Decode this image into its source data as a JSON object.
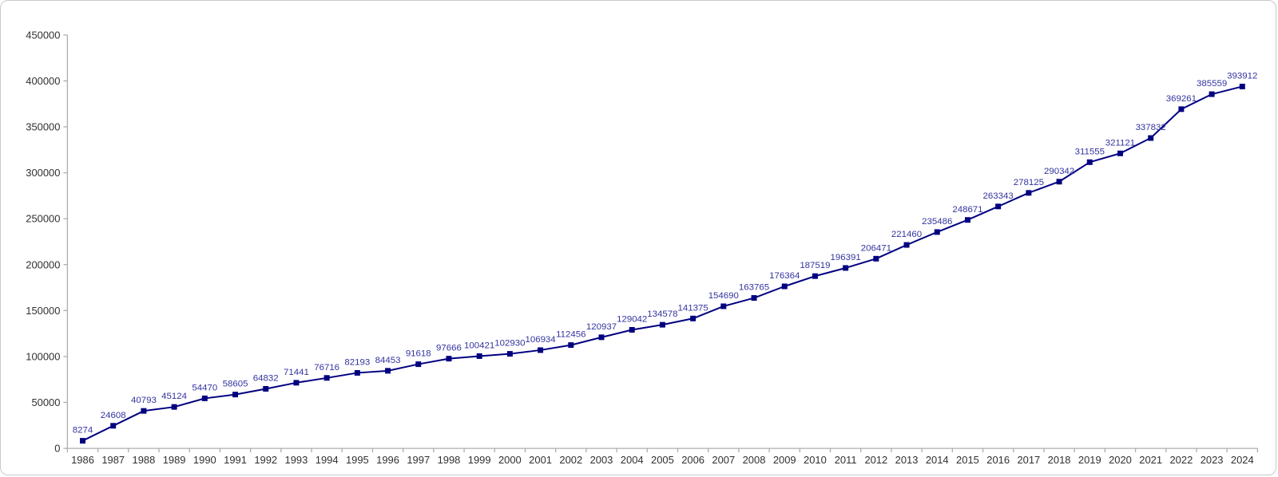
{
  "chart_data": {
    "type": "line",
    "title": "",
    "xlabel": "",
    "ylabel": "",
    "categories": [
      "1986",
      "1987",
      "1988",
      "1989",
      "1990",
      "1991",
      "1992",
      "1993",
      "1994",
      "1995",
      "1996",
      "1997",
      "1998",
      "1999",
      "2000",
      "2001",
      "2002",
      "2003",
      "2004",
      "2005",
      "2006",
      "2007",
      "2008",
      "2009",
      "2010",
      "2011",
      "2012",
      "2013",
      "2014",
      "2015",
      "2016",
      "2017",
      "2018",
      "2019",
      "2020",
      "2021",
      "2022",
      "2023",
      "2024"
    ],
    "values": [
      8274,
      24608,
      40793,
      45124,
      54470,
      58605,
      64832,
      71441,
      76716,
      82193,
      84453,
      91618,
      97666,
      100421,
      102930,
      106934,
      112456,
      120937,
      129042,
      134578,
      141375,
      154690,
      163765,
      176364,
      187519,
      196391,
      206471,
      221460,
      235486,
      248671,
      263343,
      278125,
      290342,
      311555,
      321121,
      337832,
      369261,
      385559,
      393912
    ],
    "ylim": [
      0,
      450000
    ],
    "ytick_step": 50000,
    "ytick_labels": [
      "0",
      "50000",
      "100000",
      "150000",
      "200000",
      "250000",
      "300000",
      "350000",
      "400000",
      "450000"
    ],
    "grid": false,
    "legend": "none",
    "data_labels": true,
    "marker": "square"
  },
  "colors": {
    "series_line": "#000080",
    "marker_fill": "#000080",
    "data_label": "#3333a0",
    "axis_line": "#adadad",
    "axis_tick_label": "#303030",
    "background": "#ffffff",
    "canvas_border": "#c9c9c9"
  }
}
